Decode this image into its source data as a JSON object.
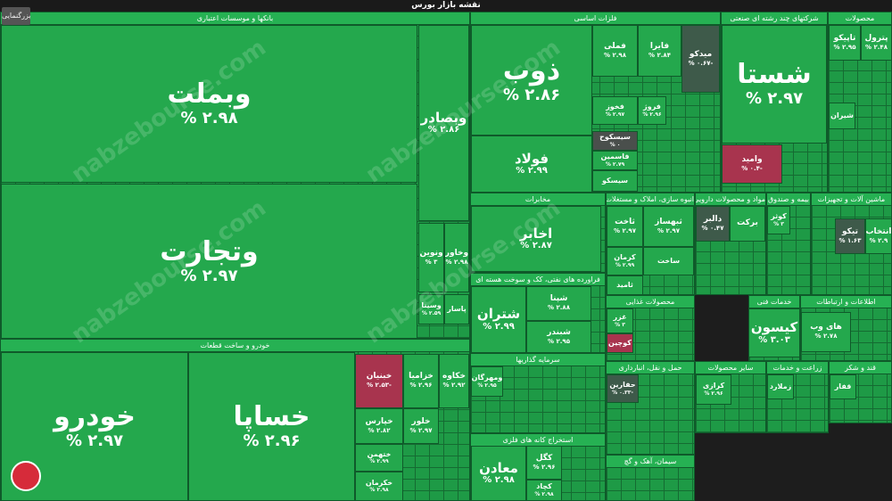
{
  "header": {
    "title": "نقشه بازار بورس",
    "zoom_button": "بزرگنمایی"
  },
  "watermark": "nabzebourse.com",
  "sectors": [
    {
      "title": "بانکها و موسسات اعتباری",
      "tiles": [
        {
          "name": "وبملت",
          "change": "۲.۹۸ %",
          "color": "#24a84d"
        },
        {
          "name": "وتجارت",
          "change": "۲.۹۷ %",
          "color": "#24a84d"
        },
        {
          "name": "وبصادر",
          "change": "۲.۸۶ %",
          "color": "#24a84d"
        },
        {
          "name": "ونوین",
          "change": "۳ %",
          "color": "#24a84d"
        },
        {
          "name": "وخاور",
          "change": "۲.۹۸ %",
          "color": "#24a84d"
        },
        {
          "name": "وسینا",
          "change": "۲.۵۹ %",
          "color": "#24a84d"
        },
        {
          "name": "پاسار",
          "color": "#24a84d"
        }
      ]
    },
    {
      "title": "خودرو و ساخت قطعات",
      "tiles": [
        {
          "name": "خودرو",
          "change": "۲.۹۷ %",
          "color": "#24a84d"
        },
        {
          "name": "خساپا",
          "change": "۲.۹۶ %",
          "color": "#24a84d"
        },
        {
          "name": "خبنیان",
          "change": "-۲.۵۳ %",
          "color": "#a8344e"
        },
        {
          "name": "خزامیا",
          "change": "۲.۹۶ %",
          "color": "#24a84d"
        },
        {
          "name": "خکاوه",
          "change": "۲.۹۲ %",
          "color": "#24a84d"
        },
        {
          "name": "خپارس",
          "change": "۲.۸۲ %",
          "color": "#24a84d"
        },
        {
          "name": "خلور",
          "change": "۲.۹۷ %",
          "color": "#24a84d"
        },
        {
          "name": "ختهمن",
          "change": "۲.۹۹ %",
          "color": "#24a84d"
        },
        {
          "name": "خکرمان",
          "change": "۲.۹۸ %",
          "color": "#24a84d"
        }
      ]
    },
    {
      "title": "فلزات اساسی",
      "tiles": [
        {
          "name": "ذوب",
          "change": "۲.۸۶ %",
          "color": "#24a84d"
        },
        {
          "name": "فولاد",
          "change": "۲.۹۹ %",
          "color": "#24a84d"
        },
        {
          "name": "فملی",
          "change": "۲.۹۸ %",
          "color": "#24a84d"
        },
        {
          "name": "فایرا",
          "change": "۲.۸۴ %",
          "color": "#24a84d"
        },
        {
          "name": "میدکو",
          "change": "-۰.۶۷ %",
          "color": "#3e5a4a"
        },
        {
          "name": "فخوز",
          "change": "۲.۹۷ %",
          "color": "#24a84d"
        },
        {
          "name": "فروژ",
          "change": "۲.۹۶ %",
          "color": "#24a84d"
        },
        {
          "name": "سیسکوح",
          "change": "۰ %",
          "color": "#4a4f4c"
        },
        {
          "name": "فاسمین",
          "change": "۲.۷۹ %",
          "color": "#24a84d"
        },
        {
          "name": "سیسکو",
          "color": "#24a84d"
        }
      ]
    },
    {
      "title": "شرکتهای چند رشته ای صنعتی",
      "tiles": [
        {
          "name": "شستا",
          "change": "۲.۹۷ %",
          "color": "#24a84d"
        },
        {
          "name": "وامید",
          "change": "-۰.۴ %",
          "color": "#a8344e"
        }
      ]
    },
    {
      "title": "محصولات",
      "tiles": [
        {
          "name": "تاپیکو",
          "change": "۲.۹۵ %",
          "color": "#24a84d"
        },
        {
          "name": "پترول",
          "change": "۲.۴۸ %",
          "color": "#24a84d"
        },
        {
          "name": "شیران",
          "color": "#24a84d"
        }
      ]
    },
    {
      "title": "مخابرات",
      "tiles": [
        {
          "name": "اخابر",
          "change": "۲.۸۷ %",
          "color": "#24a84d"
        }
      ]
    },
    {
      "title": "انبوه سازی، املاک و مستغلات",
      "tiles": [
        {
          "name": "ثاخت",
          "change": "۲.۹۷ %",
          "color": "#24a84d"
        },
        {
          "name": "ثبهساز",
          "change": "۲.۹۷ %",
          "color": "#24a84d"
        },
        {
          "name": "کرمان",
          "change": "۲.۹۹ %",
          "color": "#24a84d"
        },
        {
          "name": "ساخت",
          "color": "#24a84d"
        },
        {
          "name": "ثامید",
          "color": "#24a84d"
        }
      ]
    },
    {
      "title": "مواد و محصولات دارویی",
      "tiles": [
        {
          "name": "دالبر",
          "change": "۰.۴۷ %",
          "color": "#3e5a4a"
        },
        {
          "name": "برکت",
          "color": "#24a84d"
        }
      ]
    },
    {
      "title": "بیمه و صندوق",
      "tiles": [
        {
          "name": "کوثر",
          "change": "۳ %",
          "color": "#24a84d"
        }
      ]
    },
    {
      "title": "ماشین آلات و تجهیزات",
      "tiles": [
        {
          "name": "تیکو",
          "change": "۱.۶۳ %",
          "color": "#3e5a4a"
        },
        {
          "name": "انتخاب",
          "change": "۲.۹ %",
          "color": "#24a84d"
        }
      ]
    },
    {
      "title": "فراورده های نفتی، کک و سوخت هسته ای",
      "tiles": [
        {
          "name": "شتران",
          "change": "۲.۹۹ %",
          "color": "#24a84d"
        },
        {
          "name": "شپنا",
          "change": "۲.۸۸ %",
          "color": "#24a84d"
        },
        {
          "name": "شبندر",
          "change": "۲.۹۵ %",
          "color": "#24a84d"
        }
      ]
    },
    {
      "title": "محصولات غذایی",
      "tiles": [
        {
          "name": "غزر",
          "change": "۳ %",
          "color": "#24a84d"
        },
        {
          "name": "کوچین",
          "color": "#a8344e"
        }
      ]
    },
    {
      "title": "خدمات فنی",
      "tiles": [
        {
          "name": "کیسون",
          "change": "۳.۰۳ %",
          "color": "#24a84d"
        }
      ]
    },
    {
      "title": "اطلاعات و ارتباطات",
      "tiles": [
        {
          "name": "های وب",
          "change": "۲.۷۸ %",
          "color": "#24a84d"
        }
      ]
    },
    {
      "title": "سرمایه گذاریها",
      "tiles": [
        {
          "name": "ومهرگان",
          "change": "۲.۹۵ %",
          "color": "#24a84d"
        }
      ]
    },
    {
      "title": "حمل و نقل، انبارداری",
      "tiles": [
        {
          "name": "حفارین",
          "change": "-۰.۳۳ %",
          "color": "#3e5a4a"
        }
      ]
    },
    {
      "title": "سایر محصولات",
      "tiles": [
        {
          "name": "کرازی",
          "change": "۲.۹۶ %",
          "color": "#24a84d"
        }
      ]
    },
    {
      "title": "استخراج کانه های فلزی",
      "tiles": [
        {
          "name": "معادن",
          "change": "۲.۹۸ %",
          "color": "#24a84d"
        },
        {
          "name": "کگل",
          "change": "۲.۹۶ %",
          "color": "#24a84d"
        },
        {
          "name": "کچاد",
          "change": "۲.۹۸ %",
          "color": "#24a84d"
        }
      ]
    },
    {
      "title": "سیمان، آهک و گچ",
      "tiles": []
    },
    {
      "title": "زراعت و خدمات",
      "tiles": [
        {
          "name": "زملارد",
          "color": "#24a84d"
        }
      ]
    },
    {
      "title": "قند و شکر",
      "tiles": [
        {
          "name": "قفار",
          "color": "#24a84d"
        }
      ]
    }
  ]
}
